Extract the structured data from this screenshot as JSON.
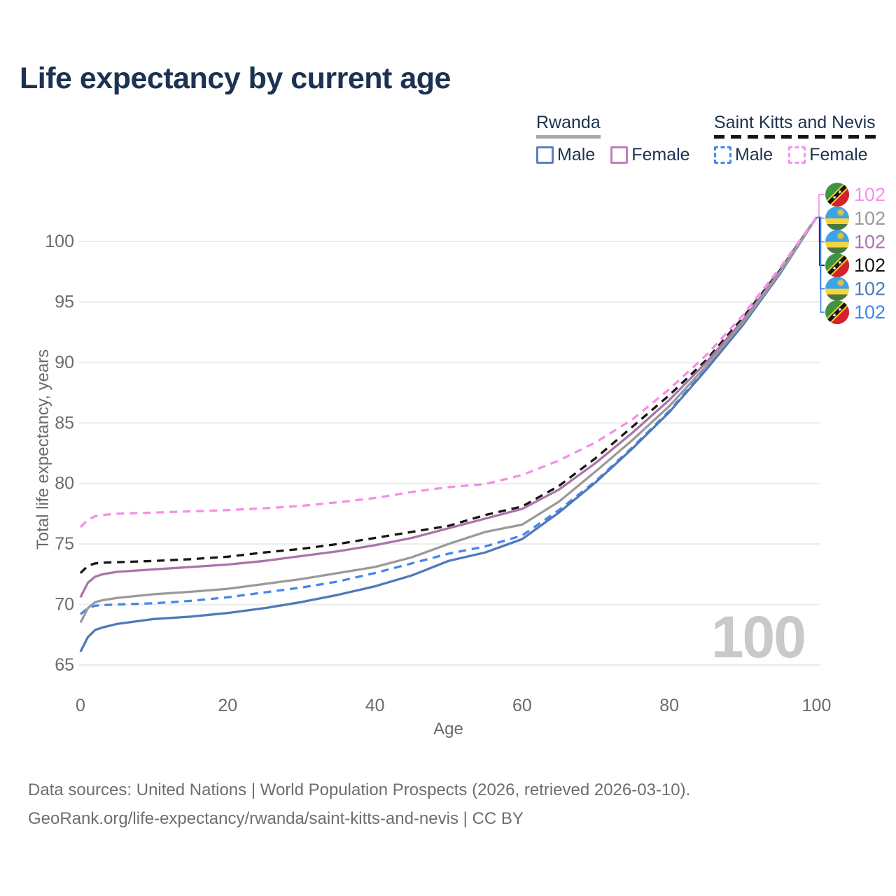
{
  "title": "Life expectancy by current age",
  "legend": {
    "groups": [
      {
        "country": "Rwanda",
        "line_style": "solid",
        "underline_color": "#a8a8a8",
        "items": [
          {
            "label": "Male",
            "color": "#4e79ba",
            "dashed": false
          },
          {
            "label": "Female",
            "color": "#bb81bc",
            "dashed": false
          }
        ]
      },
      {
        "country": "Saint Kitts and Nevis",
        "line_style": "dashed",
        "underline_color": "#141414",
        "items": [
          {
            "label": "Male",
            "color": "#4187f0",
            "dashed": true
          },
          {
            "label": "Female",
            "color": "#fb8df0",
            "dashed": true
          }
        ]
      }
    ]
  },
  "watermark": "100",
  "footer": {
    "line1": "Data sources: United Nations | World Population Prospects (2026, retrieved 2026-03-10).",
    "line2": "GeoRank.org/life-expectancy/rwanda/saint-kitts-and-nevis | CC BY"
  },
  "chart_data": {
    "type": "line",
    "title": "Life expectancy by current age",
    "xlabel": "Age",
    "ylabel": "Total life expectancy, years",
    "xlim": [
      0,
      100
    ],
    "ylim": [
      65,
      100
    ],
    "grid": "horizontal",
    "legend_position": "top-right",
    "xticks": [
      0,
      20,
      40,
      60,
      80,
      100
    ],
    "yticks": [
      65,
      70,
      75,
      80,
      85,
      90,
      95,
      100
    ],
    "x": [
      0,
      1,
      2,
      3,
      5,
      10,
      15,
      20,
      25,
      30,
      35,
      40,
      45,
      50,
      55,
      60,
      65,
      70,
      75,
      80,
      85,
      90,
      95,
      100
    ],
    "series": [
      {
        "name": "Saint Kitts and Nevis — Female",
        "flag": "saint-kitts-and-nevis",
        "sex": "female",
        "color": "#f78ee6",
        "dashed": true,
        "end_label": "102",
        "values": [
          76.4,
          77.0,
          77.3,
          77.4,
          77.5,
          77.6,
          77.7,
          77.8,
          77.95,
          78.15,
          78.45,
          78.8,
          79.3,
          79.7,
          79.95,
          80.7,
          81.9,
          83.4,
          85.3,
          87.8,
          90.6,
          93.9,
          97.8,
          102
        ]
      },
      {
        "name": "Rwanda — Both sexes",
        "flag": "rwanda",
        "sex": "total",
        "color": "#9a9a9a",
        "dashed": false,
        "end_label": "102",
        "values": [
          68.5,
          69.7,
          70.2,
          70.35,
          70.55,
          70.85,
          71.05,
          71.3,
          71.7,
          72.1,
          72.6,
          73.1,
          73.9,
          75.0,
          76.0,
          76.6,
          78.5,
          81.0,
          83.6,
          86.4,
          89.7,
          93.3,
          97.4,
          102
        ]
      },
      {
        "name": "Rwanda — Female",
        "flag": "rwanda",
        "sex": "female",
        "color": "#ab73ab",
        "dashed": false,
        "end_label": "102",
        "values": [
          70.6,
          71.8,
          72.3,
          72.5,
          72.7,
          72.9,
          73.1,
          73.3,
          73.6,
          74.0,
          74.4,
          74.9,
          75.5,
          76.3,
          77.1,
          77.9,
          79.5,
          81.7,
          84.2,
          86.9,
          90.0,
          93.5,
          97.5,
          102
        ]
      },
      {
        "name": "Saint Kitts and Nevis — Both sexes",
        "flag": "saint-kitts-and-nevis",
        "sex": "total",
        "color": "#161616",
        "dashed": true,
        "end_label": "102",
        "values": [
          72.6,
          73.2,
          73.4,
          73.45,
          73.5,
          73.6,
          73.75,
          73.95,
          74.3,
          74.6,
          75.0,
          75.5,
          76.0,
          76.5,
          77.4,
          78.1,
          79.8,
          82.1,
          84.7,
          87.3,
          90.2,
          93.7,
          97.6,
          102
        ]
      },
      {
        "name": "Rwanda — Male",
        "flag": "rwanda",
        "sex": "male",
        "color": "#4e79ba",
        "dashed": false,
        "end_label": "102",
        "values": [
          66.1,
          67.3,
          67.9,
          68.1,
          68.4,
          68.8,
          69.0,
          69.3,
          69.7,
          70.2,
          70.8,
          71.5,
          72.4,
          73.6,
          74.3,
          75.4,
          77.6,
          80.1,
          82.9,
          85.9,
          89.4,
          93.1,
          97.3,
          102
        ]
      },
      {
        "name": "Saint Kitts and Nevis — Male",
        "flag": "saint-kitts-and-nevis",
        "sex": "male",
        "color": "#4486ef",
        "dashed": true,
        "end_label": "102",
        "values": [
          69.2,
          69.7,
          69.9,
          69.95,
          70.0,
          70.1,
          70.3,
          70.6,
          71.0,
          71.4,
          71.9,
          72.6,
          73.4,
          74.2,
          74.8,
          75.7,
          77.8,
          80.2,
          83.0,
          86.0,
          89.5,
          93.2,
          97.35,
          102
        ]
      }
    ]
  }
}
